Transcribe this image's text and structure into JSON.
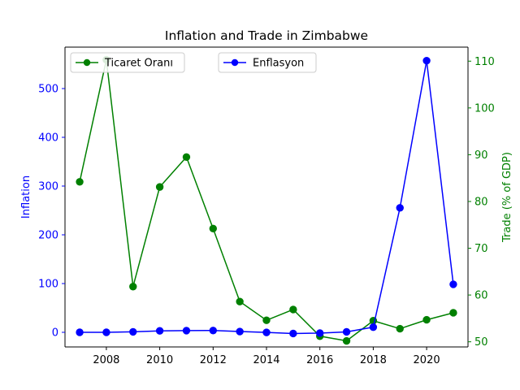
{
  "chart_data": {
    "type": "line",
    "title": "Inflation and Trade in Zimbabwe",
    "x": [
      2007,
      2008,
      2009,
      2010,
      2011,
      2012,
      2013,
      2014,
      2015,
      2016,
      2017,
      2018,
      2019,
      2020,
      2021
    ],
    "xlim": [
      2006.45,
      2021.55
    ],
    "xticks": [
      2008,
      2010,
      2012,
      2014,
      2016,
      2018,
      2020
    ],
    "grid": false,
    "axes": {
      "left": {
        "label": "Inflation",
        "color": "#0000ff",
        "ylim": [
          -30,
          585
        ],
        "ticks": [
          0,
          100,
          200,
          300,
          400,
          500
        ]
      },
      "right": {
        "label": "Trade (% of GDP)",
        "color": "#008000",
        "ylim": [
          48.9,
          113
        ],
        "ticks": [
          50,
          60,
          70,
          80,
          90,
          100,
          110
        ]
      }
    },
    "series": [
      {
        "name": "Enflasyon",
        "axis": "left",
        "color": "#0000ff",
        "marker": "circle",
        "values": [
          0,
          0,
          1,
          3,
          3.5,
          3.7,
          1.6,
          -0.2,
          -2.4,
          -1.6,
          0.9,
          10.6,
          255.3,
          557.2,
          98.5
        ]
      },
      {
        "name": "Ticaret Oranı",
        "axis": "right",
        "color": "#008000",
        "marker": "circle",
        "values": [
          84.2,
          110.3,
          61.8,
          83.1,
          89.5,
          74.2,
          58.6,
          54.6,
          56.9,
          51.2,
          50.2,
          54.5,
          52.8,
          54.7,
          56.2
        ]
      }
    ],
    "legends": [
      {
        "series": "Ticaret Oranı",
        "position": "upper-left"
      },
      {
        "series": "Enflasyon",
        "position": "upper-center"
      }
    ]
  }
}
